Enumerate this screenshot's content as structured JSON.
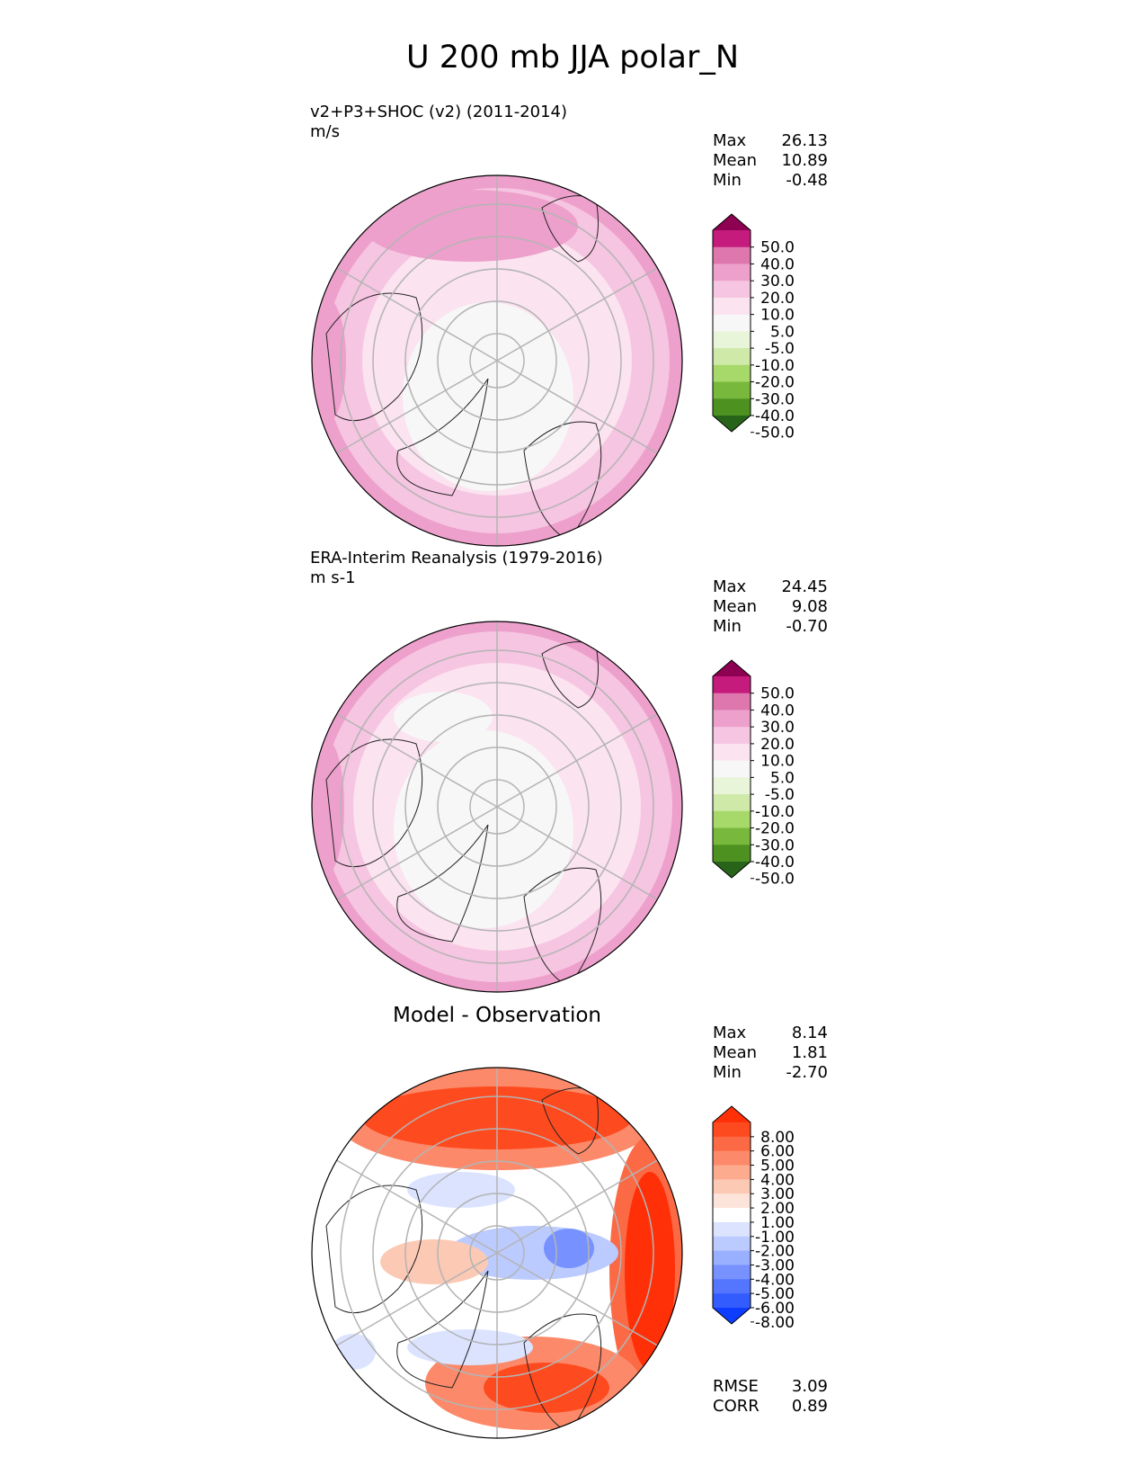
{
  "figure_title": "U 200 mb JJA polar_N",
  "chart_data": [
    {
      "type": "heatmap",
      "projection": "north polar stereographic",
      "title": "v2+P3+SHOC (v2) (2011-2014)",
      "units": "m/s",
      "stats": [
        {
          "label": "Max",
          "value": "26.13"
        },
        {
          "label": "Mean",
          "value": "10.89"
        },
        {
          "label": "Min",
          "value": "-0.48"
        }
      ],
      "colorbar": {
        "ticks": [
          "50.0",
          "40.0",
          "30.0",
          "20.0",
          "10.0",
          "5.0",
          "-5.0",
          "-10.0",
          "-20.0",
          "-30.0",
          "-40.0",
          "-50.0"
        ],
        "colors": [
          "#8e0152",
          "#c51b7d",
          "#de77ae",
          "#eda0cb",
          "#f6c5e1",
          "#fbe3f0",
          "#f7f7f7",
          "#e9f5d9",
          "#cfeaa8",
          "#a6d86a",
          "#78b83c",
          "#4d9221",
          "#276419"
        ],
        "extend": "both"
      }
    },
    {
      "type": "heatmap",
      "projection": "north polar stereographic",
      "title": "ERA-Interim Reanalysis (1979-2016)",
      "units": "m s-1",
      "stats": [
        {
          "label": "Max",
          "value": "24.45"
        },
        {
          "label": "Mean",
          "value": "9.08"
        },
        {
          "label": "Min",
          "value": "-0.70"
        }
      ],
      "colorbar": {
        "ticks": [
          "50.0",
          "40.0",
          "30.0",
          "20.0",
          "10.0",
          "5.0",
          "-5.0",
          "-10.0",
          "-20.0",
          "-30.0",
          "-40.0",
          "-50.0"
        ],
        "colors": [
          "#8e0152",
          "#c51b7d",
          "#de77ae",
          "#eda0cb",
          "#f6c5e1",
          "#fbe3f0",
          "#f7f7f7",
          "#e9f5d9",
          "#cfeaa8",
          "#a6d86a",
          "#78b83c",
          "#4d9221",
          "#276419"
        ],
        "extend": "both"
      }
    },
    {
      "type": "heatmap",
      "projection": "north polar stereographic",
      "title": "Model - Observation",
      "stats": [
        {
          "label": "Max",
          "value": "8.14"
        },
        {
          "label": "Mean",
          "value": "1.81"
        },
        {
          "label": "Min",
          "value": "-2.70"
        }
      ],
      "metrics": [
        {
          "label": "RMSE",
          "value": "3.09"
        },
        {
          "label": "CORR",
          "value": "0.89"
        }
      ],
      "colorbar": {
        "ticks": [
          "8.00",
          "6.00",
          "5.00",
          "4.00",
          "3.00",
          "2.00",
          "1.00",
          "-1.00",
          "-2.00",
          "-3.00",
          "-4.00",
          "-5.00",
          "-6.00",
          "-8.00"
        ],
        "colors": [
          "#ff3008",
          "#fe4a1f",
          "#fc6a45",
          "#fc8a6a",
          "#fcab8f",
          "#fcc9b4",
          "#fde4da",
          "#ffffff",
          "#dbe3ff",
          "#bccbff",
          "#99afff",
          "#7792ff",
          "#5476ff",
          "#335cff",
          "#0d3dff"
        ],
        "extend": "both"
      }
    }
  ]
}
